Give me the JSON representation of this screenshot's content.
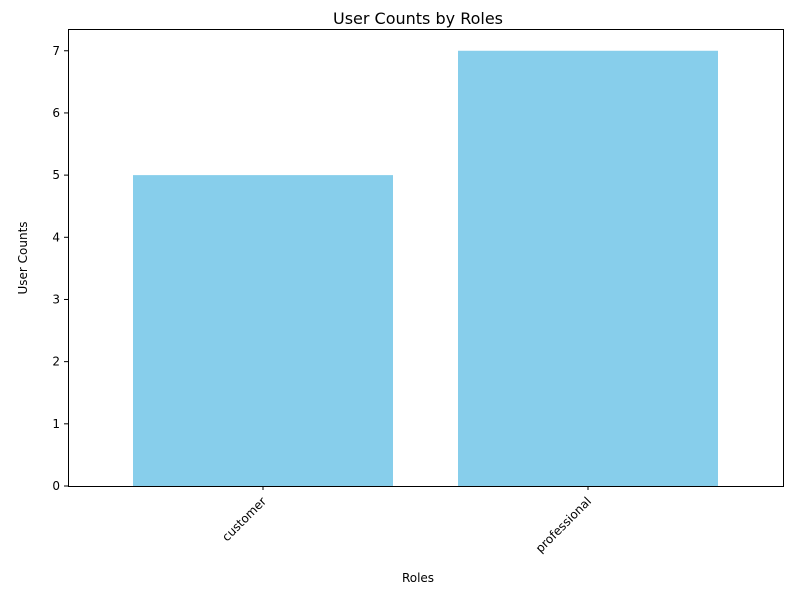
{
  "chart_data": {
    "type": "bar",
    "title": "User Counts by Roles",
    "xlabel": "Roles",
    "ylabel": "User Counts",
    "categories": [
      "customer",
      "professional"
    ],
    "values": [
      5,
      7
    ],
    "ylim": [
      0,
      7.35
    ],
    "yticks": [
      0,
      1,
      2,
      3,
      4,
      5,
      6,
      7
    ],
    "bar_color": "#87CEEB",
    "xtick_rotation": "45 degrees",
    "grid": false,
    "legend": "none"
  }
}
